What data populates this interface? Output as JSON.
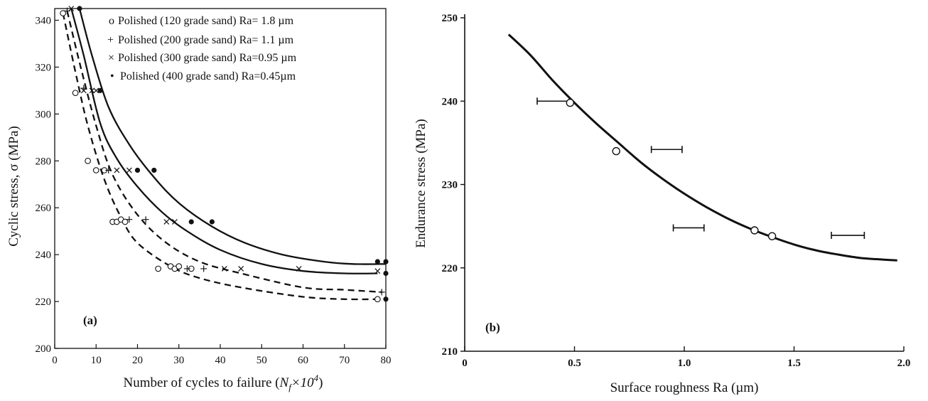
{
  "chart_data": [
    {
      "type": "line",
      "panel_label": "(a)",
      "xlabel": "Number of cycles to failure (",
      "xlabel_math": "N",
      "xlabel_sub": "f",
      "xlabel_tail": "×10",
      "xlabel_sup": "4",
      "xlabel_close": ")",
      "ylabel": "Cyclic stress, σ (MPa)",
      "xlim": [
        0,
        80
      ],
      "ylim": [
        200,
        345
      ],
      "xticks": [
        "0",
        "10",
        "20",
        "30",
        "40",
        "50",
        "60",
        "70",
        "80"
      ],
      "yticks": [
        "200",
        "220",
        "240",
        "260",
        "280",
        "300",
        "320",
        "340"
      ],
      "series": [
        {
          "name": "Polished (120 grade sand) Ra= 1.8 µm",
          "legend_marker": "o",
          "marker": "circle-open",
          "line_style": "dashed",
          "points": [
            [
              2,
              343
            ],
            [
              5,
              309
            ],
            [
              8,
              280
            ],
            [
              10,
              276
            ],
            [
              12,
              276
            ],
            [
              14,
              254
            ],
            [
              15,
              254
            ],
            [
              16,
              255
            ],
            [
              17,
              254
            ],
            [
              25,
              234
            ],
            [
              28,
              235
            ],
            [
              29,
              234
            ],
            [
              30,
              235
            ],
            [
              33,
              234
            ],
            [
              78,
              221
            ]
          ],
          "curve": [
            [
              2,
              343
            ],
            [
              5,
              318
            ],
            [
              8,
              295
            ],
            [
              12,
              272
            ],
            [
              16,
              256
            ],
            [
              20,
              245
            ],
            [
              28,
              235
            ],
            [
              35,
              230
            ],
            [
              45,
              226
            ],
            [
              60,
              222
            ],
            [
              70,
              221
            ],
            [
              78,
              221
            ]
          ]
        },
        {
          "name": "Polished (200 grade sand) Ra= 1.1 µm",
          "legend_marker": "+",
          "marker": "plus",
          "line_style": "dashed",
          "points": [
            [
              3,
              344
            ],
            [
              7,
              311
            ],
            [
              13,
              276
            ],
            [
              18,
              255
            ],
            [
              22,
              255
            ],
            [
              32,
              234
            ],
            [
              36,
              234
            ],
            [
              79,
              224
            ]
          ],
          "curve": [
            [
              3,
              344
            ],
            [
              6,
              322
            ],
            [
              10,
              295
            ],
            [
              14,
              274
            ],
            [
              20,
              257
            ],
            [
              27,
              245
            ],
            [
              35,
              237
            ],
            [
              45,
              232
            ],
            [
              60,
              226
            ],
            [
              70,
              225
            ],
            [
              79,
              224
            ]
          ]
        },
        {
          "name": "Polished (300 grade sand) Ra=0.95 µm",
          "legend_marker": "×",
          "marker": "cross",
          "line_style": "solid",
          "points": [
            [
              4,
              345
            ],
            [
              7,
              310
            ],
            [
              9,
              310
            ],
            [
              10,
              310
            ],
            [
              15,
              276
            ],
            [
              18,
              276
            ],
            [
              27,
              254
            ],
            [
              29,
              254
            ],
            [
              41,
              234
            ],
            [
              45,
              234
            ],
            [
              59,
              234
            ],
            [
              78,
              233
            ]
          ],
          "curve": [
            [
              4,
              345
            ],
            [
              7,
              325
            ],
            [
              11,
              296
            ],
            [
              15,
              281
            ],
            [
              20,
              269
            ],
            [
              26,
              258
            ],
            [
              32,
              250
            ],
            [
              40,
              242
            ],
            [
              50,
              236
            ],
            [
              60,
              233
            ],
            [
              70,
              232
            ],
            [
              78,
              232
            ]
          ]
        },
        {
          "name": "Polished (400 grade sand) Ra=0.45µm",
          "legend_marker": "•",
          "marker": "dot",
          "line_style": "solid",
          "points": [
            [
              6,
              345
            ],
            [
              11,
              310
            ],
            [
              20,
              276
            ],
            [
              24,
              276
            ],
            [
              33,
              254
            ],
            [
              38,
              254
            ],
            [
              78,
              237
            ],
            [
              80,
              237
            ],
            [
              80,
              232
            ],
            [
              80,
              221
            ]
          ],
          "curve": [
            [
              6,
              345
            ],
            [
              9,
              325
            ],
            [
              13,
              303
            ],
            [
              18,
              287
            ],
            [
              24,
              273
            ],
            [
              30,
              262
            ],
            [
              38,
              252
            ],
            [
              46,
              245
            ],
            [
              55,
              240
            ],
            [
              65,
              237
            ],
            [
              72,
              236
            ],
            [
              80,
              236
            ]
          ]
        }
      ]
    },
    {
      "type": "scatter",
      "panel_label": "(b)",
      "xlabel": "Surface roughness Ra (µm)",
      "ylabel": "Endurance stress (MPa)",
      "xlim": [
        0,
        2.0
      ],
      "ylim": [
        210,
        250
      ],
      "xticks": [
        "0",
        "0.5",
        "1.0",
        "1.5",
        "2.0"
      ],
      "yticks": [
        "210",
        "220",
        "230",
        "240",
        "250"
      ],
      "points": [
        [
          0.48,
          239.8
        ],
        [
          0.69,
          234.0
        ],
        [
          1.32,
          224.5
        ],
        [
          1.4,
          223.8
        ]
      ],
      "error_bars": [
        {
          "y": 240.0,
          "x_min": 0.33,
          "x_max": 0.48
        },
        {
          "y": 234.2,
          "x_min": 0.85,
          "x_max": 0.99
        },
        {
          "y": 224.8,
          "x_min": 0.95,
          "x_max": 1.09
        },
        {
          "y": 223.9,
          "x_min": 1.67,
          "x_max": 1.82
        }
      ],
      "fit_curve": [
        [
          0.2,
          248
        ],
        [
          0.3,
          245.5
        ],
        [
          0.4,
          242.5
        ],
        [
          0.5,
          239.8
        ],
        [
          0.6,
          237.3
        ],
        [
          0.7,
          235
        ],
        [
          0.8,
          232.7
        ],
        [
          0.9,
          230.7
        ],
        [
          1.0,
          228.9
        ],
        [
          1.1,
          227.3
        ],
        [
          1.2,
          225.9
        ],
        [
          1.3,
          224.7
        ],
        [
          1.4,
          223.7
        ],
        [
          1.5,
          222.8
        ],
        [
          1.6,
          222.1
        ],
        [
          1.7,
          221.6
        ],
        [
          1.8,
          221.2
        ],
        [
          1.9,
          221.0
        ],
        [
          1.97,
          220.9
        ]
      ]
    }
  ]
}
